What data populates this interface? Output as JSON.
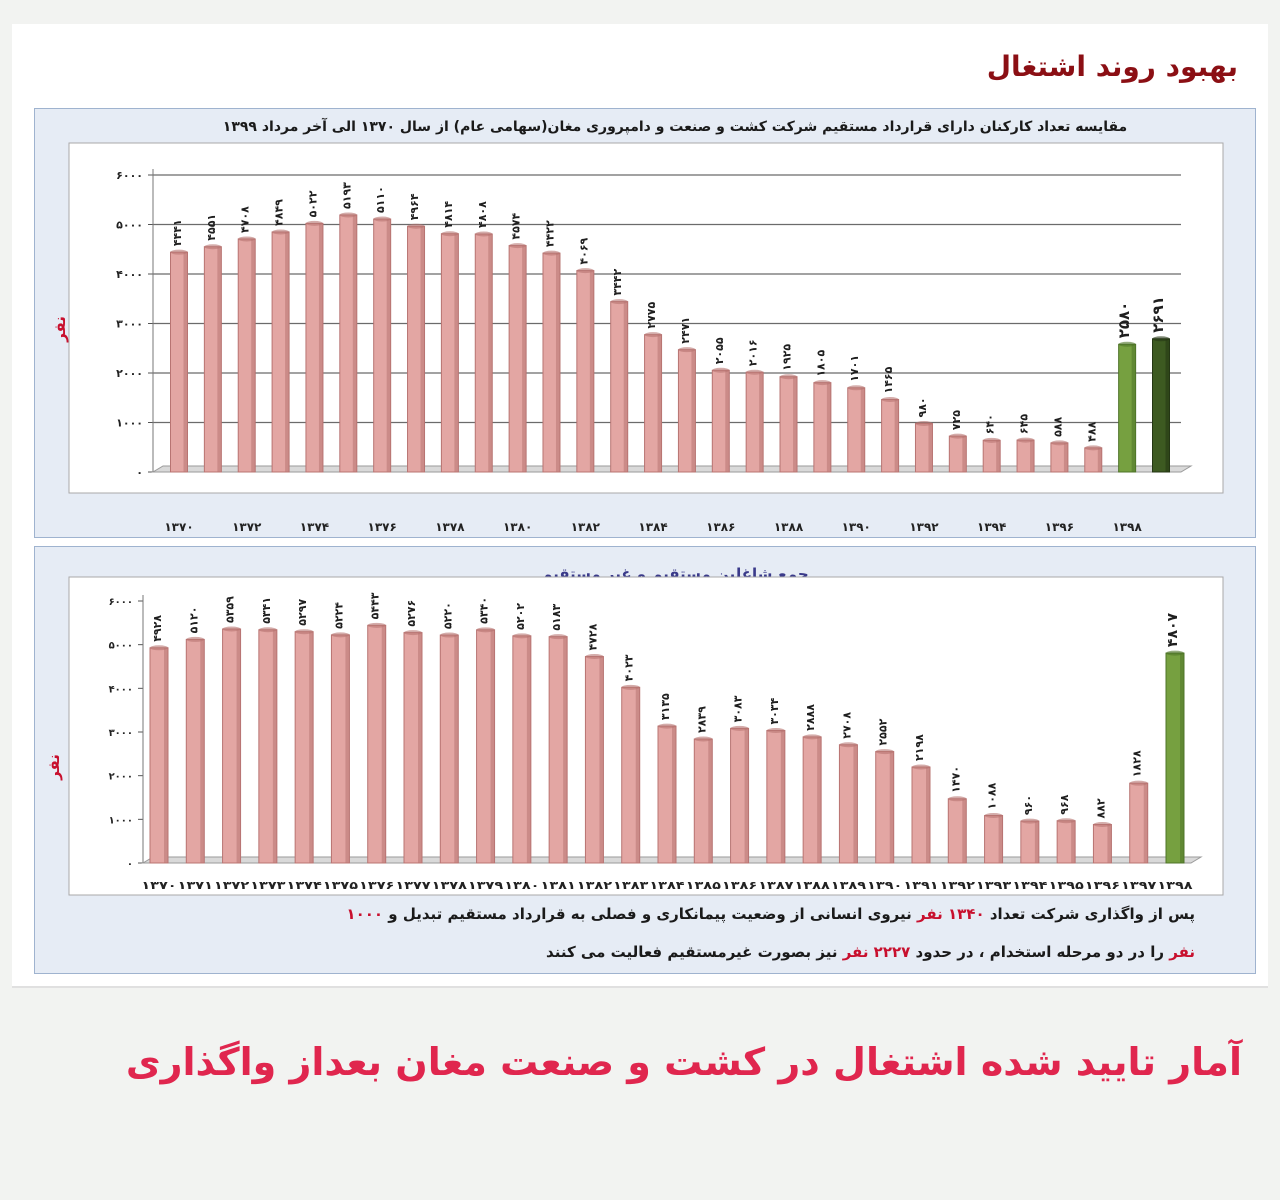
{
  "header": {
    "title": "بهبود روند اشتغال"
  },
  "note": {
    "line1_parts": [
      {
        "text": "پس از واگذاری شرکت تعداد ",
        "color": "#1a1a1a"
      },
      {
        "text": "۱۳۴۰ نفر",
        "color": "#c8102e"
      },
      {
        "text": " نیروی انسانی از وضعیت پیمانکاری و فصلی  به قرارداد مستقیم تبدیل و ",
        "color": "#1a1a1a"
      },
      {
        "text": "۱۰۰۰",
        "color": "#c8102e"
      }
    ],
    "line2_parts": [
      {
        "text": "نفر",
        "color": "#c8102e"
      },
      {
        "text": " را در دو مرحله استخدام ، در حدود ",
        "color": "#1a1a1a"
      },
      {
        "text": "۲۲۲۷ نفر",
        "color": "#c8102e"
      },
      {
        "text": " نیز بصورت غیرمستقیم فعالیت می کنند",
        "color": "#1a1a1a"
      }
    ]
  },
  "caption": "آمار تایید شده اشتغال در کشت و صنعت مغان بعداز واگذاری",
  "colors": {
    "bar_pink": "#e3a6a3",
    "bar_pink_dark": "#b87472",
    "bar_green": "#76a040",
    "bar_green_dark": "#3d5a21",
    "title_red": "#8b0f14"
  },
  "chart_data": [
    {
      "type": "bar",
      "title": "مقایسه تعداد کارکنان  دارای قرارداد مستقیم شرکت کشت و صنعت و دامپروری مغان(سهامی عام) از سال ۱۳۷۰ الی آخر مرداد ۱۳۹۹",
      "ylabel": "نفر",
      "ylim": [
        0,
        6000
      ],
      "yticks": [
        "۰",
        "۱۰۰۰",
        "۲۰۰۰",
        "۳۰۰۰",
        "۴۰۰۰",
        "۵۰۰۰",
        "۶۰۰۰"
      ],
      "x_tick_labels": [
        "۱۳۷۰",
        "۱۳۷۲",
        "۱۳۷۴",
        "۱۳۷۶",
        "۱۳۷۸",
        "۱۳۸۰",
        "۱۳۸۲",
        "۱۳۸۴",
        "۱۳۸۶",
        "۱۳۸۸",
        "۱۳۹۰",
        "۱۳۹۲",
        "۱۳۹۴",
        "۱۳۹۶",
        "۱۳۹۸"
      ],
      "values": [
        4441,
        4551,
        4708,
        4849,
        5022,
        5193,
        5110,
        4964,
        4814,
        4808,
        4574,
        4422,
        4069,
        3442,
        2775,
        2471,
        2055,
        2016,
        1925,
        1805,
        1701,
        1465,
        980,
        725,
        640,
        645,
        588,
        488,
        2580,
        2691
      ],
      "value_labels": [
        "۴۴۴۱",
        "۴۵۵۱",
        "۴۷۰۸",
        "۴۸۴۹",
        "۵۰۲۲",
        "۵۱۹۳",
        "۵۱۱۰",
        "۴۹۶۴",
        "۴۸۱۴",
        "۴۸۰۸",
        "۴۵۷۴",
        "۴۴۲۲",
        "۴۰۶۹",
        "۳۴۴۲",
        "۲۷۷۵",
        "۲۴۷۱",
        "۲۰۵۵",
        "۲۰۱۶",
        "۱۹۲۵",
        "۱۸۰۵",
        "۱۷۰۱",
        "۱۴۶۵",
        "۹۸۰",
        "۷۲۵",
        "۶۴۰",
        "۶۴۵",
        "۵۸۸",
        "۴۸۸",
        "۲۵۸۰",
        "۲۶۹۱"
      ],
      "bar_colors": [
        "pink",
        "pink",
        "pink",
        "pink",
        "pink",
        "pink",
        "pink",
        "pink",
        "pink",
        "pink",
        "pink",
        "pink",
        "pink",
        "pink",
        "pink",
        "pink",
        "pink",
        "pink",
        "pink",
        "pink",
        "pink",
        "pink",
        "pink",
        "pink",
        "pink",
        "pink",
        "pink",
        "pink",
        "green",
        "green_dark"
      ],
      "grid": true
    },
    {
      "type": "bar",
      "title": "جمع شاغلین مستقیم و غیر مستقیم",
      "ylabel": "نفر",
      "ylim": [
        0,
        6000
      ],
      "yticks": [
        "۰",
        "۱۰۰۰",
        "۲۰۰۰",
        "۳۰۰۰",
        "۴۰۰۰",
        "۵۰۰۰",
        "۶۰۰۰"
      ],
      "x_tick_labels": [
        "۱۳۷۰",
        "۱۳۷۱",
        "۱۳۷۲",
        "۱۳۷۳",
        "۱۳۷۴",
        "۱۳۷۵",
        "۱۳۷۶",
        "۱۳۷۷",
        "۱۳۷۸",
        "۱۳۷۹",
        "۱۳۸۰",
        "۱۳۸۱",
        "۱۳۸۲",
        "۱۳۸۳",
        "۱۳۸۴",
        "۱۳۸۵",
        "۱۳۸۶",
        "۱۳۸۷",
        "۱۳۸۸",
        "۱۳۸۹",
        "۱۳۹۰",
        "۱۳۹۱",
        "۱۳۹۲",
        "۱۳۹۳",
        "۱۳۹۴",
        "۱۳۹۵",
        "۱۳۹۶",
        "۱۳۹۷",
        "۱۳۹۸"
      ],
      "values": [
        4928,
        5120,
        5359,
        5341,
        5297,
        5224,
        5443,
        5276,
        5220,
        5340,
        5202,
        5183,
        4728,
        4023,
        3135,
        2839,
        3083,
        3034,
        2888,
        2708,
        2552,
        2198,
        1470,
        1088,
        960,
        968,
        882,
        1828,
        4807
      ],
      "value_labels": [
        "۴۹۲۸",
        "۵۱۲۰",
        "۵۳۵۹",
        "۵۳۴۱",
        "۵۲۹۷",
        "۵۲۲۴",
        "۵۴۴۳",
        "۵۲۷۶",
        "۵۲۲۰",
        "۵۳۴۰",
        "۵۲۰۲",
        "۵۱۸۳",
        "۴۷۲۸",
        "۴۰۲۳",
        "۳۱۳۵",
        "۲۸۳۹",
        "۳۰۸۳",
        "۳۰۳۴",
        "۲۸۸۸",
        "۲۷۰۸",
        "۲۵۵۲",
        "۲۱۹۸",
        "۱۴۷۰",
        "۱۰۸۸",
        "۹۶۰",
        "۹۶۸",
        "۸۸۲",
        "۱۸۲۸",
        "۴۸۰۷"
      ],
      "bar_colors": [
        "pink",
        "pink",
        "pink",
        "pink",
        "pink",
        "pink",
        "pink",
        "pink",
        "pink",
        "pink",
        "pink",
        "pink",
        "pink",
        "pink",
        "pink",
        "pink",
        "pink",
        "pink",
        "pink",
        "pink",
        "pink",
        "pink",
        "pink",
        "pink",
        "pink",
        "pink",
        "pink",
        "pink",
        "green"
      ],
      "grid": false
    }
  ]
}
